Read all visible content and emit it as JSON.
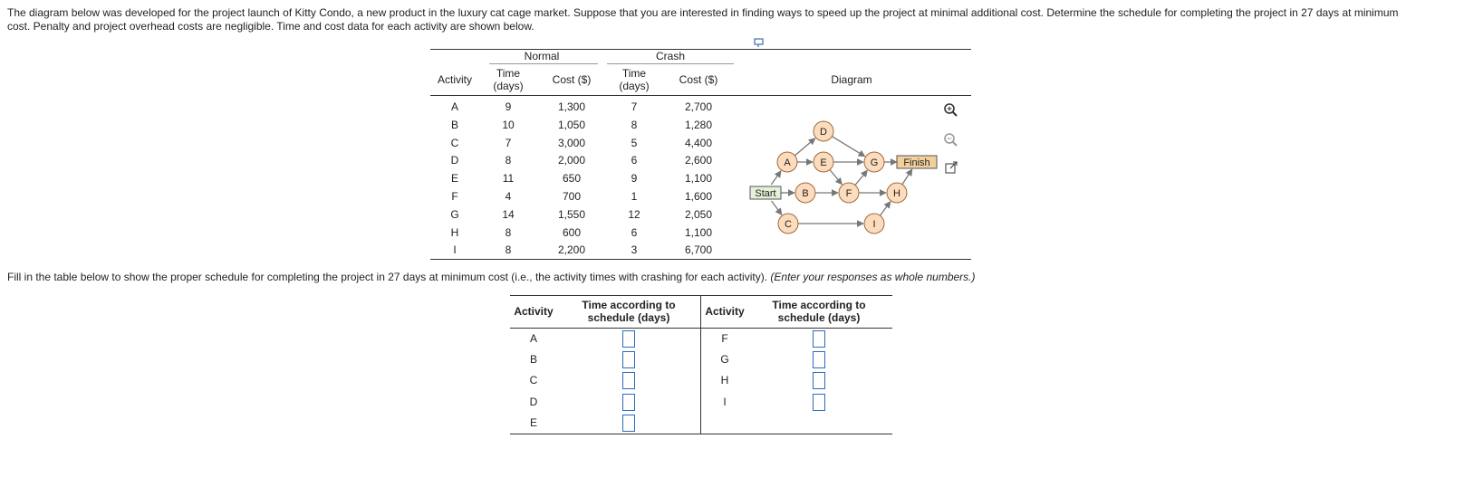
{
  "intro": "The diagram below was developed for the project launch of Kitty Condo, a new product in the luxury cat cage market. Suppose that you are interested in finding ways to speed up the project at minimal additional cost. Determine the schedule for completing the project in 27 days at minimum cost. Penalty and project overhead costs are negligible. Time and cost data for each activity are shown below.",
  "table": {
    "group_headers": [
      "Normal",
      "Crash"
    ],
    "headers": [
      "Activity",
      "Time (days)",
      "Cost ($)",
      "Time (days)",
      "Cost ($)",
      "Diagram"
    ],
    "rows": [
      [
        "A",
        "9",
        "1,300",
        "7",
        "2,700"
      ],
      [
        "B",
        "10",
        "1,050",
        "8",
        "1,280"
      ],
      [
        "C",
        "7",
        "3,000",
        "5",
        "4,400"
      ],
      [
        "D",
        "8",
        "2,000",
        "6",
        "2,600"
      ],
      [
        "E",
        "11",
        "650",
        "9",
        "1,100"
      ],
      [
        "F",
        "4",
        "700",
        "1",
        "1,600"
      ],
      [
        "G",
        "14",
        "1,550",
        "12",
        "2,050"
      ],
      [
        "H",
        "8",
        "600",
        "6",
        "1,100"
      ],
      [
        "I",
        "8",
        "2,200",
        "3",
        "6,700"
      ]
    ]
  },
  "diagram": {
    "nodes": [
      "Start",
      "A",
      "B",
      "C",
      "D",
      "E",
      "F",
      "G",
      "H",
      "I",
      "Finish"
    ]
  },
  "instruction": "Fill in the table below to show the proper schedule for completing the project in 27 days at minimum cost (i.e., the activity times with crashing for each activity).",
  "instruction_note": "(Enter your responses as whole numbers.)",
  "answer_table": {
    "headers": [
      "Activity",
      "Time according to schedule (days)",
      "Activity",
      "Time according to schedule (days)"
    ],
    "left": [
      "A",
      "B",
      "C",
      "D",
      "E"
    ],
    "right": [
      "F",
      "G",
      "H",
      "I"
    ]
  }
}
